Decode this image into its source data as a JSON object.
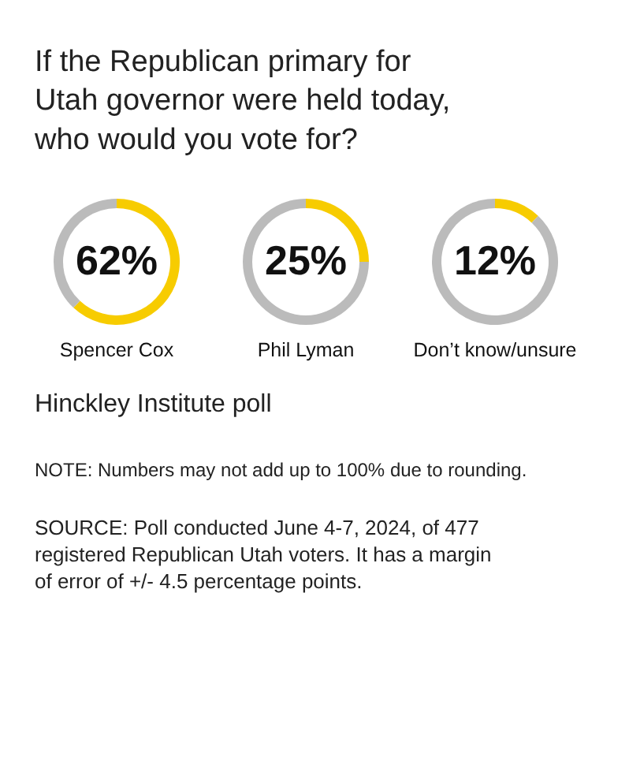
{
  "chart_data": [
    {
      "type": "donut",
      "title": "If the Republican primary for Utah governor were held today, who would you vote for?",
      "xlabel": "Spencer Cox",
      "categories": [
        null,
        null
      ],
      "values": [
        62,
        38
      ],
      "colors": [
        "#f7cc00",
        "#bbbbbb"
      ],
      "value_labels": [
        "62%",
        null
      ]
    },
    {
      "type": "donut",
      "xlabel": "Phil Lyman",
      "categories": [
        null,
        null
      ],
      "values": [
        25,
        75
      ],
      "colors": [
        "#f7cc00",
        "#bbbbbb"
      ],
      "value_labels": [
        "25%",
        null
      ]
    },
    {
      "type": "donut",
      "xlabel": "Don’t know/unsure",
      "categories": [
        null,
        null
      ],
      "values": [
        12,
        88
      ],
      "colors": [
        "#f7cc00",
        "#bbbbbb"
      ],
      "value_labels": [
        "12%",
        null
      ],
      "annotations": [
        "Hinckley Institute poll",
        "NOTE: Numbers may not add up to 100% due to rounding.",
        "SOURCE: Poll conducted June 4-7, 2024, of 477 registered Republican Utah voters. It has a margin of error of +/- 4.5 percentage points."
      ]
    }
  ]
}
